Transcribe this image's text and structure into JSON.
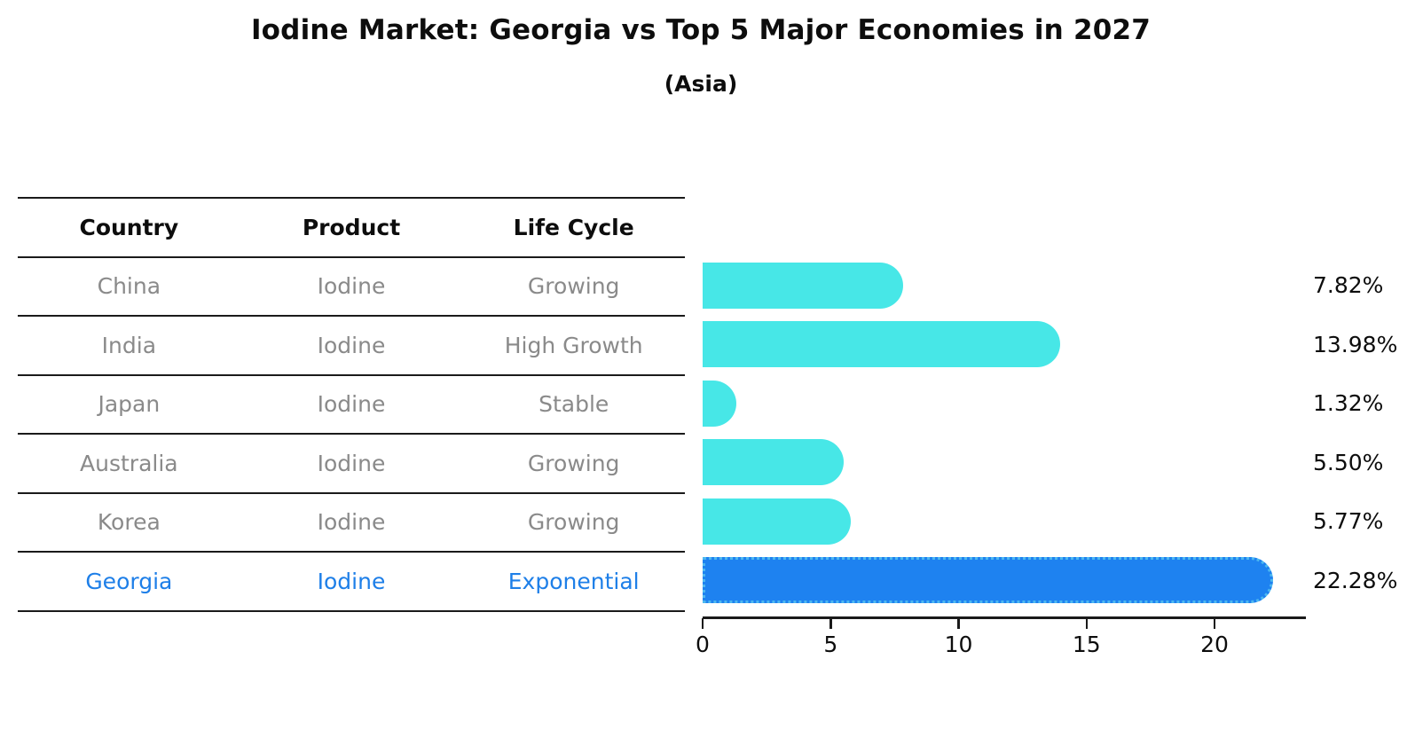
{
  "title": "Iodine Market: Georgia vs Top 5 Major Economies in 2027",
  "subtitle": "(Asia)",
  "table": {
    "headers": [
      "Country",
      "Product",
      "Life Cycle"
    ],
    "rows": [
      {
        "country": "China",
        "product": "Iodine",
        "life_cycle": "Growing"
      },
      {
        "country": "India",
        "product": "Iodine",
        "life_cycle": "High Growth"
      },
      {
        "country": "Japan",
        "product": "Iodine",
        "life_cycle": "Stable"
      },
      {
        "country": "Australia",
        "product": "Iodine",
        "life_cycle": "Growing"
      },
      {
        "country": "Korea",
        "product": "Iodine",
        "life_cycle": "Growing"
      },
      {
        "country": "Georgia",
        "product": "Iodine",
        "life_cycle": "Exponential"
      }
    ],
    "highlight_row": 5
  },
  "chart_data": {
    "type": "bar",
    "orientation": "horizontal",
    "title": "Iodine Market: Georgia vs Top 5 Major Economies in 2027",
    "subtitle": "(Asia)",
    "categories": [
      "China",
      "India",
      "Japan",
      "Australia",
      "Korea",
      "Georgia"
    ],
    "values": [
      7.82,
      13.98,
      1.32,
      5.5,
      5.77,
      22.28
    ],
    "value_labels": [
      "7.82%",
      "13.98%",
      "1.32%",
      "5.50%",
      "5.77%",
      "22.28%"
    ],
    "unit": "%",
    "x_ticks": [
      "0",
      "5",
      "10",
      "15",
      "20"
    ],
    "x_tick_values": [
      0,
      5,
      10,
      15,
      20
    ],
    "xlim": [
      0,
      23.5
    ],
    "grid": false,
    "legend": null,
    "bar_color": "#47E7E7",
    "highlight_color": "#1E82F0",
    "highlight_edge_color": "#4DB8F0",
    "highlight_index": 5,
    "row_text_color": "#8A8A8A",
    "highlight_text_color": "#1E7FE8"
  }
}
